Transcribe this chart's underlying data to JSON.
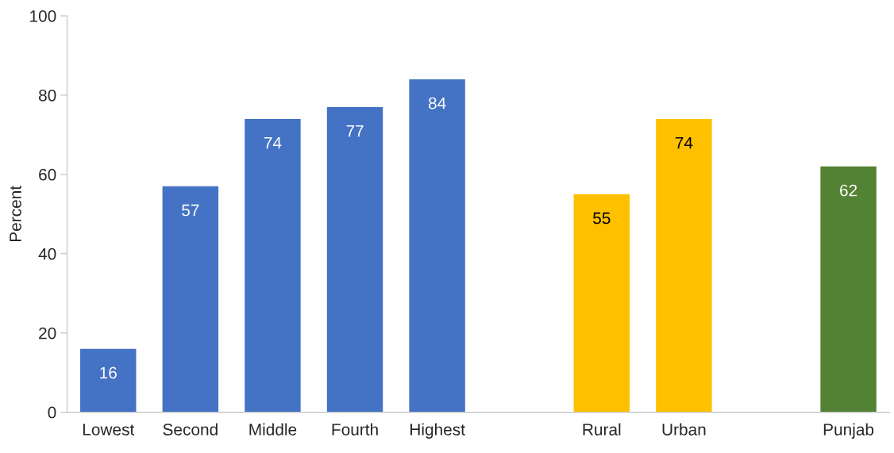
{
  "chart_data": {
    "type": "bar",
    "ylabel": "Percent",
    "categories": [
      "Lowest",
      "Second",
      "Middle",
      "Fourth",
      "Highest",
      null,
      "Rural",
      "Urban",
      null,
      "Punjab"
    ],
    "values": [
      16,
      57,
      74,
      77,
      84,
      null,
      55,
      74,
      null,
      62
    ],
    "colors": [
      "#4472c4",
      "#4472c4",
      "#4472c4",
      "#4472c4",
      "#4472c4",
      null,
      "#ffc000",
      "#ffc000",
      null,
      "#548235"
    ],
    "ylim": [
      0,
      100
    ],
    "yticks": [
      0,
      20,
      40,
      60,
      80,
      100
    ],
    "grid": false,
    "data_labels": true
  }
}
